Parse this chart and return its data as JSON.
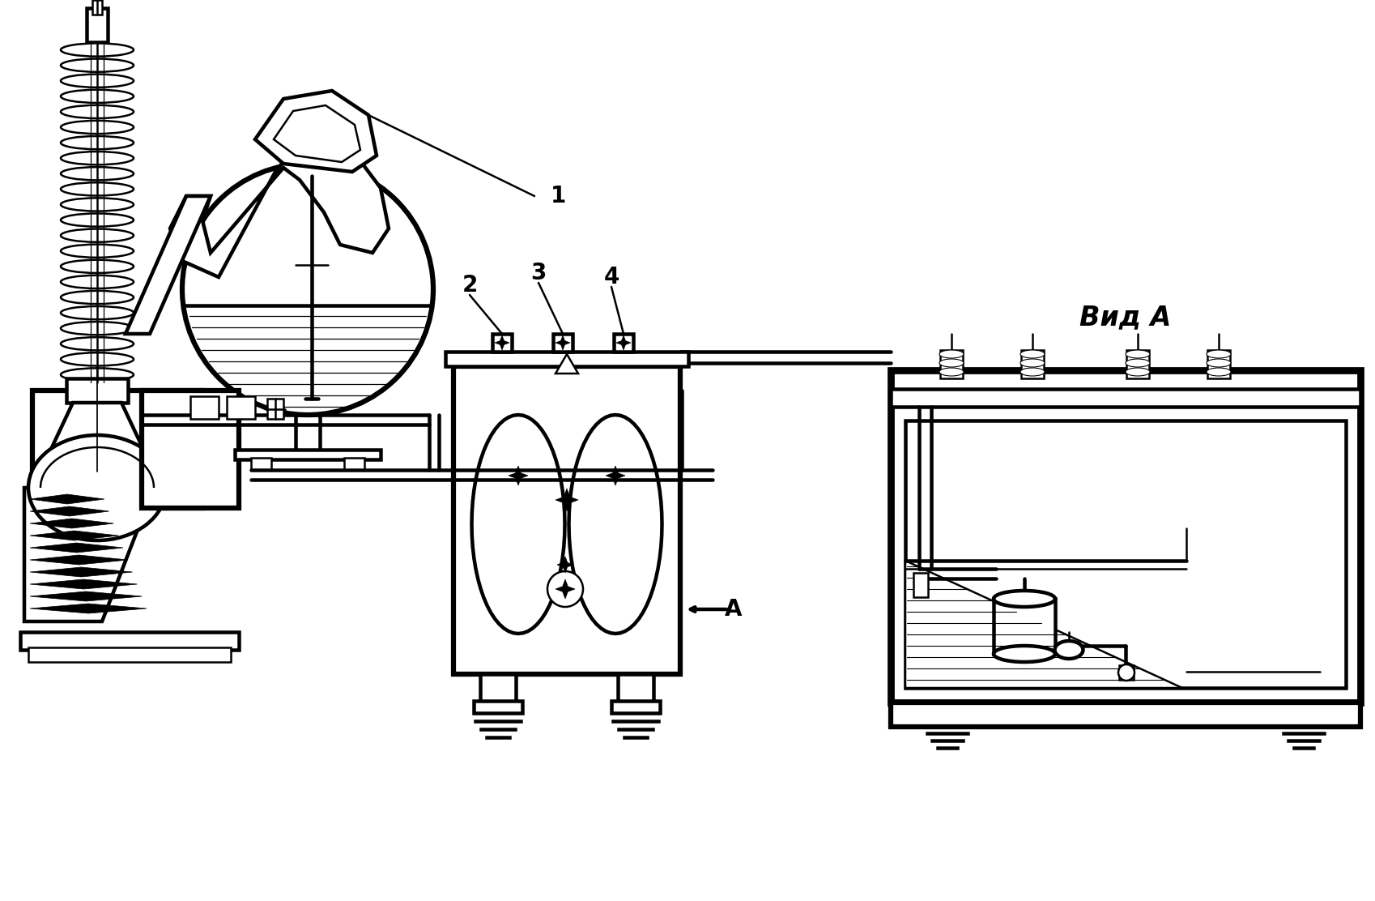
{
  "bg_color": "#ffffff",
  "lw": 1.8,
  "fig_width": 16.99,
  "fig_height": 11.12,
  "label_1": "1",
  "label_2": "2",
  "label_3": "3",
  "label_4": "4",
  "label_A": "A",
  "label_vid": "Вид А",
  "font_size": 18
}
